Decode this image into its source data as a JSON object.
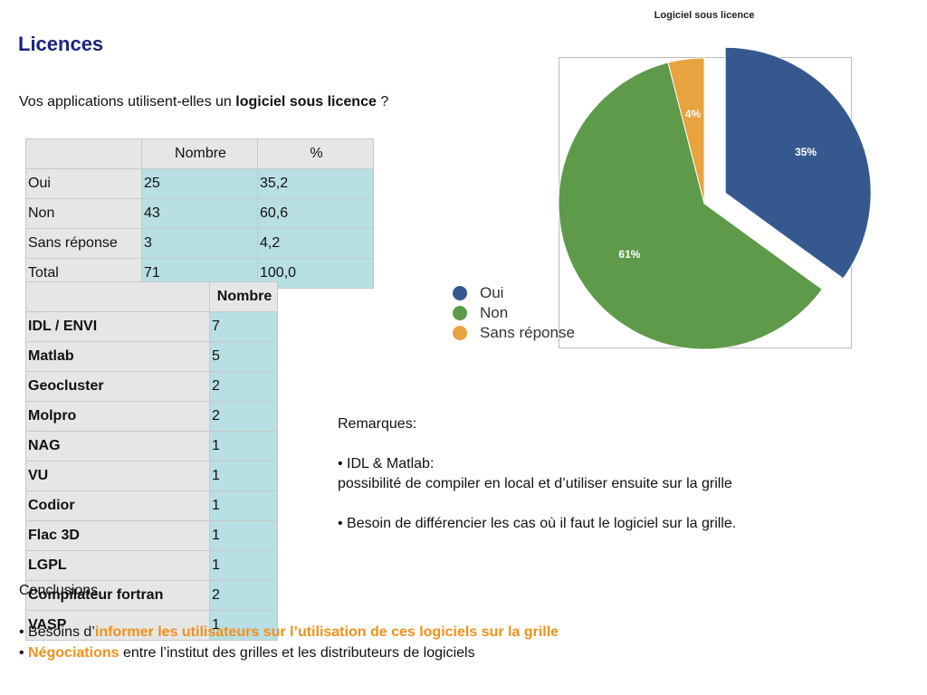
{
  "title": "Licences",
  "question": {
    "before": "Vos applications utilisent-elles un ",
    "bold": "logiciel sous licence",
    "after": " ?"
  },
  "table1": {
    "headers": [
      "",
      "Nombre",
      "%"
    ],
    "rows": [
      [
        "Oui",
        "25",
        "35,2"
      ],
      [
        "Non",
        "43",
        "60,6"
      ],
      [
        "Sans réponse",
        "3",
        "4,2"
      ],
      [
        "Total",
        "71",
        "100,0"
      ]
    ]
  },
  "table2": {
    "headers": [
      "",
      "Nombre"
    ],
    "rows": [
      [
        "IDL / ENVI",
        "7"
      ],
      [
        "Matlab",
        "5"
      ],
      [
        "Geocluster",
        "2"
      ],
      [
        "Molpro",
        "2"
      ],
      [
        "NAG",
        "1"
      ],
      [
        "VU",
        "1"
      ],
      [
        "Codior",
        "1"
      ],
      [
        "Flac 3D",
        "1"
      ],
      [
        "LGPL",
        "1"
      ],
      [
        "Compilateur fortran",
        "2"
      ],
      [
        "VASP",
        "1"
      ]
    ]
  },
  "remarks": {
    "heading": "Remarques:",
    "item1_title": "IDL & Matlab:",
    "item1_text": "possibilité de compiler en local et d’utiliser ensuite sur la grille",
    "item2_text": "Besoin de différencier les cas où il faut le logiciel sur la grille."
  },
  "conclusions": {
    "heading": "Conclusions",
    "item1_before": "Besoins d’",
    "item1_highlight": "informer les utilisateurs sur l’utilisation de ces logiciels sur la grille",
    "item2_highlight": "Négociations",
    "item2_after": " entre l’institut des grilles et les distributeurs de logiciels"
  },
  "colors": {
    "title": "#1a237e",
    "highlight": "#f39019",
    "oui": "#35598f",
    "non": "#5e9a49",
    "sans": "#e8a23e"
  },
  "chart_data": {
    "type": "pie",
    "title": "Logiciel sous licence",
    "labels": [
      "Oui",
      "Non",
      "Sans réponse"
    ],
    "values": [
      35,
      61,
      4
    ],
    "data_labels": [
      "35%",
      "61%",
      "4%"
    ],
    "colors": [
      "#35598f",
      "#5e9a49",
      "#e8a23e"
    ],
    "legend_position": "left",
    "exploded": "Oui"
  }
}
